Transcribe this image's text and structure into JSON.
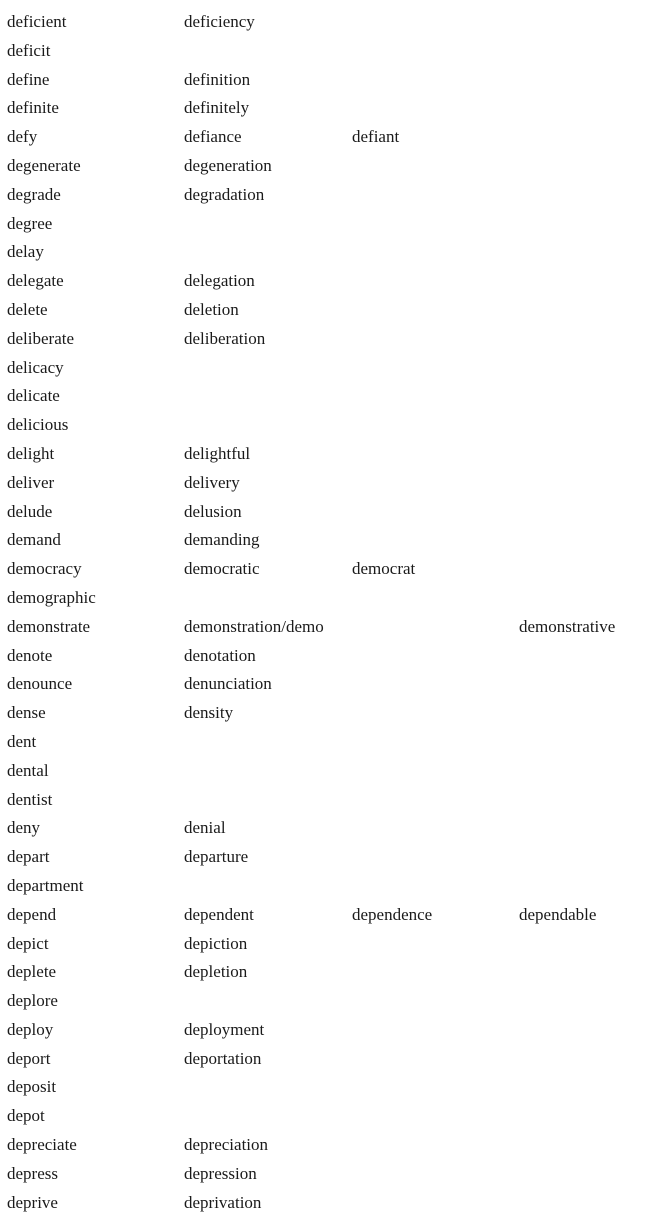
{
  "rows": [
    [
      "deficient",
      "deficiency"
    ],
    [
      "deficit"
    ],
    [
      "define",
      "definition"
    ],
    [
      "definite",
      "definitely"
    ],
    [
      "defy",
      "defiance",
      "defiant"
    ],
    [
      "degenerate",
      "degeneration"
    ],
    [
      "degrade",
      "degradation"
    ],
    [
      "degree"
    ],
    [
      "delay"
    ],
    [
      "delegate",
      "delegation"
    ],
    [
      "delete",
      "deletion"
    ],
    [
      "deliberate",
      "deliberation"
    ],
    [
      "delicacy"
    ],
    [
      "delicate"
    ],
    [
      "delicious"
    ],
    [
      "delight",
      "delightful"
    ],
    [
      "deliver",
      "delivery"
    ],
    [
      "delude",
      "delusion"
    ],
    [
      "demand",
      "demanding"
    ],
    [
      "democracy",
      "democratic",
      "democrat"
    ],
    [
      "demographic"
    ],
    [
      "demonstrate",
      "demonstration/demo",
      "",
      "demonstrative"
    ],
    [
      "denote",
      "denotation"
    ],
    [
      "denounce",
      "denunciation"
    ],
    [
      "dense",
      "density"
    ],
    [
      "dent"
    ],
    [
      "dental"
    ],
    [
      "dentist"
    ],
    [
      "deny",
      "denial"
    ],
    [
      "depart",
      "departure"
    ],
    [
      "department"
    ],
    [
      "depend",
      "dependent",
      "dependence",
      "dependable"
    ],
    [
      "depict",
      "depiction"
    ],
    [
      "deplete",
      "depletion"
    ],
    [
      "deplore"
    ],
    [
      "deploy",
      "deployment"
    ],
    [
      "deport",
      "deportation"
    ],
    [
      "deposit"
    ],
    [
      "depot"
    ],
    [
      "depreciate",
      "depreciation"
    ],
    [
      "depress",
      "depression"
    ],
    [
      "deprive",
      "deprivation"
    ]
  ]
}
